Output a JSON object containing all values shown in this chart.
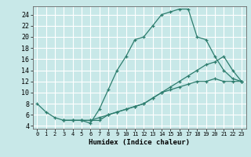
{
  "xlabel": "Humidex (Indice chaleur)",
  "ylabel": "",
  "bg_color": "#c8e8e8",
  "grid_color": "#ffffff",
  "line_color": "#2d7d6e",
  "xlim": [
    -0.5,
    23.5
  ],
  "ylim": [
    3.5,
    25.5
  ],
  "xticks": [
    0,
    1,
    2,
    3,
    4,
    5,
    6,
    7,
    8,
    9,
    10,
    11,
    12,
    13,
    14,
    15,
    16,
    17,
    18,
    19,
    20,
    21,
    22,
    23
  ],
  "yticks": [
    4,
    6,
    8,
    10,
    12,
    14,
    16,
    18,
    20,
    22,
    24
  ],
  "curve1_x": [
    0,
    1,
    2,
    3,
    4,
    5,
    6,
    7,
    8,
    9,
    10,
    11,
    12,
    13,
    14,
    15,
    16,
    17,
    18,
    19,
    20,
    21,
    22,
    23
  ],
  "curve1_y": [
    8,
    6.5,
    5.5,
    5,
    5,
    5,
    4.5,
    7,
    10.5,
    14,
    16.5,
    19.5,
    20,
    22,
    24,
    24.5,
    25,
    25,
    20,
    19.5,
    16.5,
    14,
    12.5,
    12
  ],
  "curve2_x": [
    3,
    4,
    5,
    6,
    7,
    8,
    9,
    10,
    11,
    12,
    13,
    14,
    15,
    16,
    17,
    18,
    19,
    20,
    21,
    22,
    23
  ],
  "curve2_y": [
    5,
    5,
    5,
    5,
    5,
    6,
    6.5,
    7,
    7.5,
    8,
    9,
    10,
    11,
    12,
    13,
    14,
    15,
    15.5,
    16.5,
    14,
    12
  ],
  "curve3_x": [
    3,
    4,
    5,
    6,
    7,
    8,
    9,
    10,
    11,
    12,
    13,
    14,
    15,
    16,
    17,
    18,
    19,
    20,
    21,
    22,
    23
  ],
  "curve3_y": [
    5,
    5,
    5,
    5,
    5.5,
    6,
    6.5,
    7,
    7.5,
    8,
    9,
    10,
    10.5,
    11,
    11.5,
    12,
    12,
    12.5,
    12,
    12,
    12
  ]
}
